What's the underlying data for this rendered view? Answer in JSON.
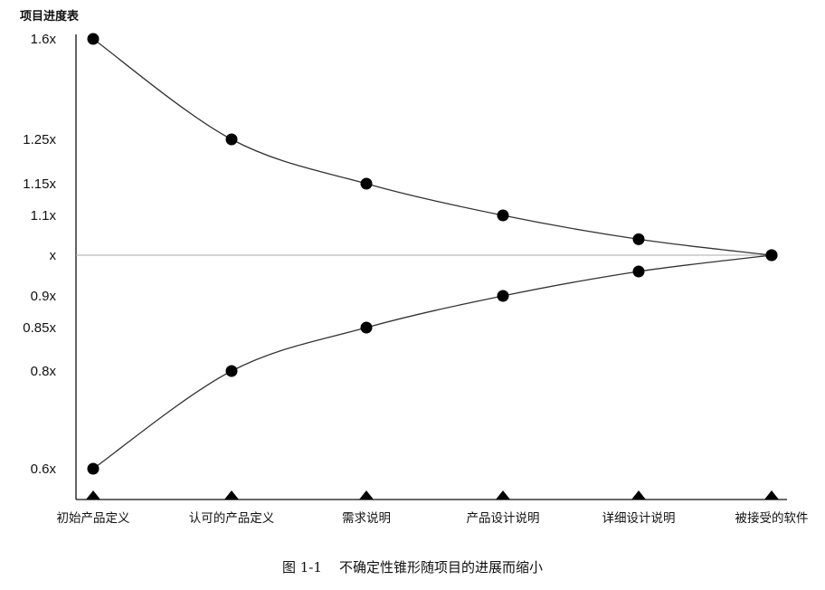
{
  "chart_data": {
    "type": "line",
    "y_title": "项目进度表",
    "caption": "图 1-1    不确定性锥形随项目的进展而缩小",
    "categories": [
      "初始产品定义",
      "认可的产品定义",
      "需求说明",
      "产品设计说明",
      "详细设计说明",
      "被接受的软件"
    ],
    "y_ticks": [
      {
        "value": 1.6,
        "label": "1.6x"
      },
      {
        "value": 1.25,
        "label": "1.25x"
      },
      {
        "value": 1.15,
        "label": "1.15x"
      },
      {
        "value": 1.1,
        "label": "1.1x"
      },
      {
        "value": 1.0,
        "label": "x"
      },
      {
        "value": 0.9,
        "label": "0.9x"
      },
      {
        "value": 0.85,
        "label": "0.85x"
      },
      {
        "value": 0.8,
        "label": "0.8x"
      },
      {
        "value": 0.6,
        "label": "0.6x"
      }
    ],
    "series": [
      {
        "values": [
          1.6,
          1.25,
          1.15,
          1.1,
          1.04,
          1.0
        ]
      },
      {
        "values": [
          0.6,
          0.8,
          0.85,
          0.9,
          0.96,
          1.0
        ]
      }
    ],
    "reference_line": 1.0,
    "grid": false,
    "colors": {
      "line": "#333333",
      "marker": "#000000",
      "reference": "#aaaaaa"
    }
  }
}
